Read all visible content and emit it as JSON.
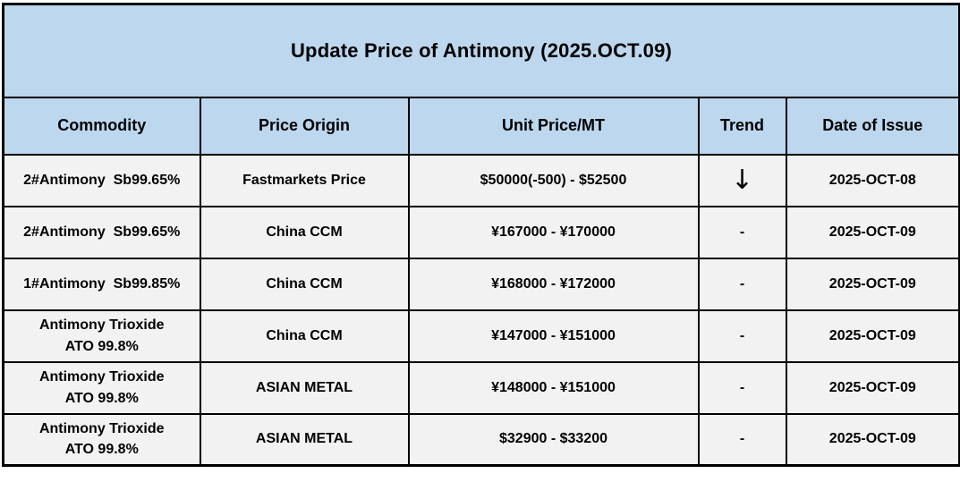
{
  "title": "Update Price of Antimony (2025.OCT.09)",
  "header": {
    "commodity": "Commodity",
    "origin": "Price Origin",
    "price": "Unit Price/MT",
    "trend": "Trend",
    "date": "Date of Issue"
  },
  "rows": [
    {
      "commodity": "2#Antimony  Sb99.65%",
      "origin": "Fastmarkets Price",
      "price": "$50000(-500) - $52500",
      "trend": "↓",
      "date": "2025-OCT-08"
    },
    {
      "commodity": "2#Antimony  Sb99.65%",
      "origin": "China CCM",
      "price": "¥167000 - ¥170000",
      "trend": "-",
      "date": "2025-OCT-09"
    },
    {
      "commodity": "1#Antimony  Sb99.85%",
      "origin": "China CCM",
      "price": "¥168000 - ¥172000",
      "trend": "-",
      "date": "2025-OCT-09"
    },
    {
      "commodity": "Antimony Trioxide\nATO 99.8%",
      "origin": "China CCM",
      "price": "¥147000 - ¥151000",
      "trend": "-",
      "date": "2025-OCT-09"
    },
    {
      "commodity": "Antimony Trioxide\nATO 99.8%",
      "origin": "ASIAN METAL",
      "price": "¥148000 - ¥151000",
      "trend": "-",
      "date": "2025-OCT-09"
    },
    {
      "commodity": "Antimony Trioxide\nATO 99.8%",
      "origin": "ASIAN METAL",
      "price": "$32900 - $33200",
      "trend": "-",
      "date": "2025-OCT-09"
    }
  ],
  "colors": {
    "header_bg": "#bdd7ee",
    "row_bg": "#f2f2f2",
    "border": "#000000",
    "text": "#000000"
  }
}
